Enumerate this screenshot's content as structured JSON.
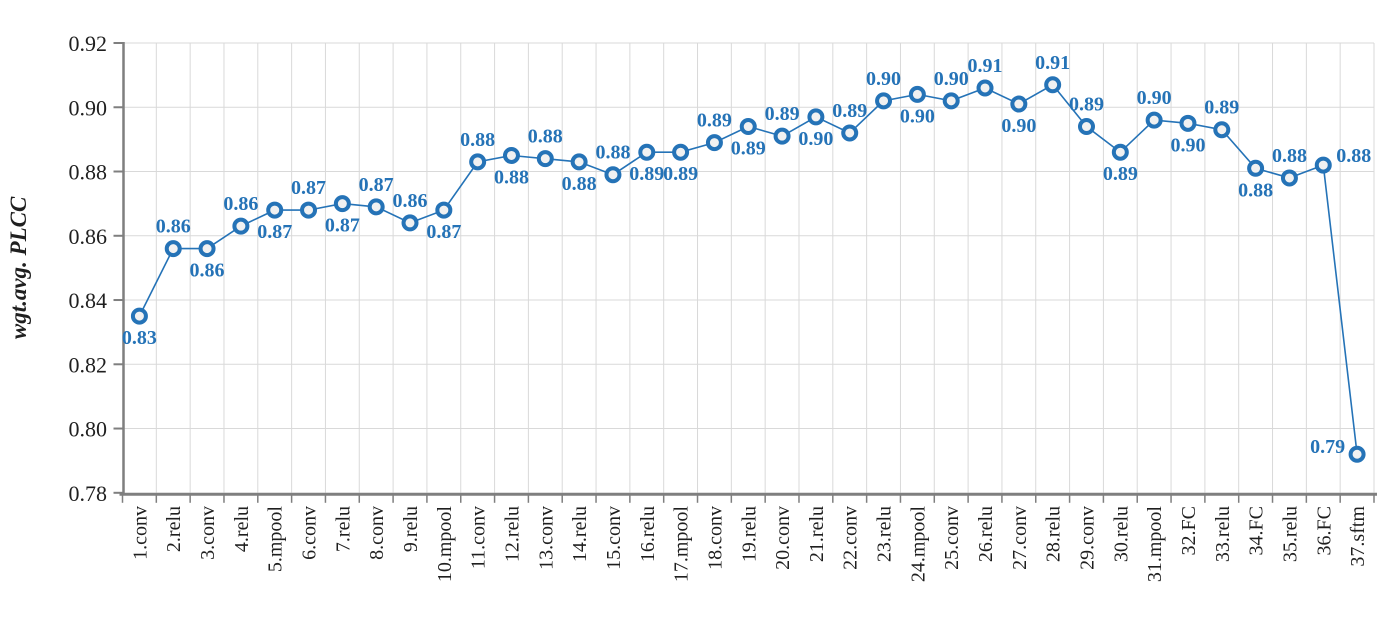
{
  "chart_data": {
    "type": "line",
    "title": "",
    "xlabel": "",
    "ylabel": "wgt.avg. PLCC",
    "ylim": [
      0.78,
      0.92
    ],
    "ytick_labels": [
      "0.78",
      "0.80",
      "0.82",
      "0.84",
      "0.86",
      "0.88",
      "0.90",
      "0.92"
    ],
    "grid": "both",
    "legend": "none",
    "categories": [
      "1.conv",
      "2.relu",
      "3.conv",
      "4.relu",
      "5.mpool",
      "6.conv",
      "7.relu",
      "8.conv",
      "9.relu",
      "10.mpool",
      "11.conv",
      "12.relu",
      "13.conv",
      "14.relu",
      "15.conv",
      "16.relu",
      "17.mpool",
      "18.conv",
      "19.relu",
      "20.conv",
      "21.relu",
      "22.conv",
      "23.relu",
      "24.mpool",
      "25.conv",
      "26.relu",
      "27.conv",
      "28.relu",
      "29.conv",
      "30.relu",
      "31.mpool",
      "32.FC",
      "33.relu",
      "34.FC",
      "35.relu",
      "36.FC",
      "37.sftm"
    ],
    "series": [
      {
        "name": "wgt.avg. PLCC",
        "values": [
          0.835,
          0.856,
          0.856,
          0.863,
          0.868,
          0.868,
          0.87,
          0.869,
          0.864,
          0.868,
          0.883,
          0.885,
          0.884,
          0.883,
          0.879,
          0.886,
          0.886,
          0.889,
          0.894,
          0.891,
          0.897,
          0.892,
          0.902,
          0.904,
          0.902,
          0.906,
          0.901,
          0.907,
          0.894,
          0.886,
          0.896,
          0.895,
          0.893,
          0.881,
          0.878,
          0.882,
          0.792
        ],
        "point_labels": [
          {
            "text": "0.83",
            "pos": "below"
          },
          {
            "text": "0.86",
            "pos": "above"
          },
          {
            "text": "0.86",
            "pos": "below"
          },
          {
            "text": "0.86",
            "pos": "above"
          },
          {
            "text": "0.87",
            "pos": "below"
          },
          {
            "text": "0.87",
            "pos": "above"
          },
          {
            "text": "0.87",
            "pos": "below"
          },
          {
            "text": "0.87",
            "pos": "above"
          },
          {
            "text": "0.86",
            "pos": "above"
          },
          {
            "text": "0.87",
            "pos": "below"
          },
          {
            "text": "0.88",
            "pos": "above"
          },
          {
            "text": "0.88",
            "pos": "below"
          },
          {
            "text": "0.88",
            "pos": "above"
          },
          {
            "text": "0.88",
            "pos": "below"
          },
          {
            "text": "0.88",
            "pos": "above"
          },
          {
            "text": "0.89",
            "pos": "below"
          },
          {
            "text": "0.89",
            "pos": "below"
          },
          {
            "text": "0.89",
            "pos": "above"
          },
          {
            "text": "0.89",
            "pos": "below"
          },
          {
            "text": "0.89",
            "pos": "above"
          },
          {
            "text": "0.90",
            "pos": "below"
          },
          {
            "text": "0.89",
            "pos": "above"
          },
          {
            "text": "0.90",
            "pos": "above"
          },
          {
            "text": "0.90",
            "pos": "below"
          },
          {
            "text": "0.90",
            "pos": "above"
          },
          {
            "text": "0.91",
            "pos": "above"
          },
          {
            "text": "0.90",
            "pos": "below"
          },
          {
            "text": "0.91",
            "pos": "above"
          },
          {
            "text": "0.89",
            "pos": "above"
          },
          {
            "text": "0.89",
            "pos": "below"
          },
          {
            "text": "0.90",
            "pos": "above"
          },
          {
            "text": "0.90",
            "pos": "below"
          },
          {
            "text": "0.89",
            "pos": "above"
          },
          {
            "text": "0.88",
            "pos": "below"
          },
          {
            "text": "0.88",
            "pos": "above"
          },
          {
            "text": "0.88",
            "pos": "right"
          },
          {
            "text": "0.79",
            "pos": "left"
          }
        ]
      }
    ],
    "colors": {
      "accent": "#2573B7",
      "marker_fill": "#F1F1F1",
      "grid": "#D9D9D9",
      "axis": "#7F7F7F",
      "text": "#1F1F1F"
    }
  }
}
